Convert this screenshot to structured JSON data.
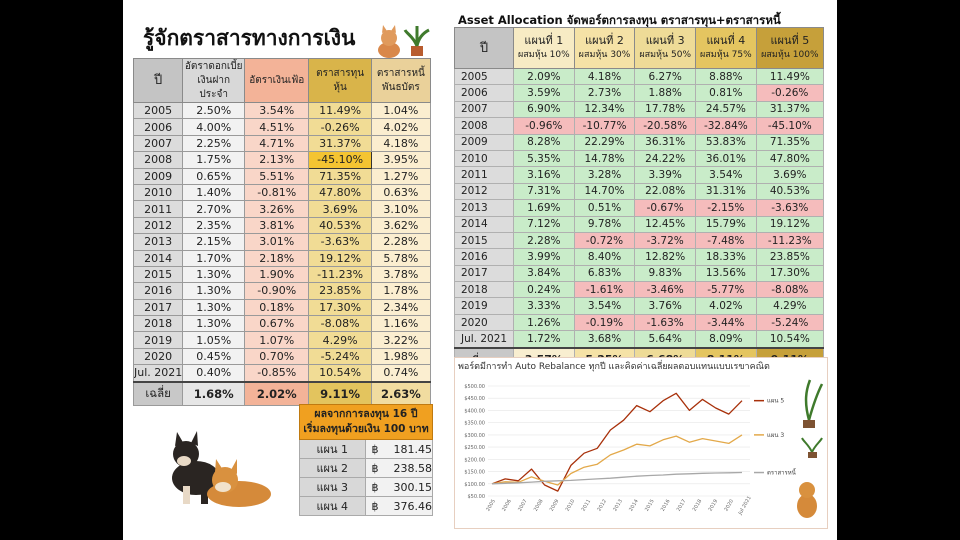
{
  "title": "รู้จักตราสารทางการเงิน",
  "left_table": {
    "headers": [
      "ปี",
      "อัตราดอกเบี้ย\nเงินฝากประจำ",
      "อัตราเงินเฟ้อ",
      "ตราสารทุน\nหุ้น",
      "ตราสารหนี้\nพันธบัตร"
    ],
    "rows": [
      [
        "2005",
        "2.50%",
        "3.54%",
        "11.49%",
        "1.04%"
      ],
      [
        "2006",
        "4.00%",
        "4.51%",
        "-0.26%",
        "4.02%"
      ],
      [
        "2007",
        "2.25%",
        "4.71%",
        "31.37%",
        "4.18%"
      ],
      [
        "2008",
        "1.75%",
        "2.13%",
        "-45.10%",
        "3.95%"
      ],
      [
        "2009",
        "0.65%",
        "5.51%",
        "71.35%",
        "1.27%"
      ],
      [
        "2010",
        "1.40%",
        "-0.81%",
        "47.80%",
        "0.63%"
      ],
      [
        "2011",
        "2.70%",
        "3.26%",
        "3.69%",
        "3.10%"
      ],
      [
        "2012",
        "2.35%",
        "3.81%",
        "40.53%",
        "3.62%"
      ],
      [
        "2013",
        "2.15%",
        "3.01%",
        "-3.63%",
        "2.28%"
      ],
      [
        "2014",
        "1.70%",
        "2.18%",
        "19.12%",
        "5.78%"
      ],
      [
        "2015",
        "1.30%",
        "1.90%",
        "-11.23%",
        "3.78%"
      ],
      [
        "2016",
        "1.30%",
        "-0.90%",
        "23.85%",
        "1.78%"
      ],
      [
        "2017",
        "1.30%",
        "0.18%",
        "17.30%",
        "2.34%"
      ],
      [
        "2018",
        "1.30%",
        "0.67%",
        "-8.08%",
        "1.16%"
      ],
      [
        "2019",
        "1.05%",
        "1.07%",
        "4.29%",
        "3.22%"
      ],
      [
        "2020",
        "0.45%",
        "0.70%",
        "-5.24%",
        "1.98%"
      ],
      [
        "Jul. 2021",
        "0.40%",
        "-0.85%",
        "10.54%",
        "0.74%"
      ]
    ],
    "average": [
      "เฉลี่ย",
      "1.68%",
      "2.02%",
      "9.11%",
      "2.63%"
    ]
  },
  "right_title": "Asset Allocation จัดพอร์ตการลงทุน ตราสารทุน+ตราสารหนี้",
  "right_table": {
    "year_header": "ปี",
    "plans": [
      {
        "name": "แผนที่ 1",
        "mix": "ผสมหุ้น 10%"
      },
      {
        "name": "แผนที่ 2",
        "mix": "ผสมหุ้น 30%"
      },
      {
        "name": "แผนที่ 3",
        "mix": "ผสมหุ้น 50%"
      },
      {
        "name": "แผนที่ 4",
        "mix": "ผสมหุ้น 75%"
      },
      {
        "name": "แผนที่ 5",
        "mix": "ผสมหุ้น 100%"
      }
    ],
    "rows": [
      [
        "2005",
        "2.09%",
        "4.18%",
        "6.27%",
        "8.88%",
        "11.49%"
      ],
      [
        "2006",
        "3.59%",
        "2.73%",
        "1.88%",
        "0.81%",
        "-0.26%"
      ],
      [
        "2007",
        "6.90%",
        "12.34%",
        "17.78%",
        "24.57%",
        "31.37%"
      ],
      [
        "2008",
        "-0.96%",
        "-10.77%",
        "-20.58%",
        "-32.84%",
        "-45.10%"
      ],
      [
        "2009",
        "8.28%",
        "22.29%",
        "36.31%",
        "53.83%",
        "71.35%"
      ],
      [
        "2010",
        "5.35%",
        "14.78%",
        "24.22%",
        "36.01%",
        "47.80%"
      ],
      [
        "2011",
        "3.16%",
        "3.28%",
        "3.39%",
        "3.54%",
        "3.69%"
      ],
      [
        "2012",
        "7.31%",
        "14.70%",
        "22.08%",
        "31.31%",
        "40.53%"
      ],
      [
        "2013",
        "1.69%",
        "0.51%",
        "-0.67%",
        "-2.15%",
        "-3.63%"
      ],
      [
        "2014",
        "7.12%",
        "9.78%",
        "12.45%",
        "15.79%",
        "19.12%"
      ],
      [
        "2015",
        "2.28%",
        "-0.72%",
        "-3.72%",
        "-7.48%",
        "-11.23%"
      ],
      [
        "2016",
        "3.99%",
        "8.40%",
        "12.82%",
        "18.33%",
        "23.85%"
      ],
      [
        "2017",
        "3.84%",
        "6.83%",
        "9.83%",
        "13.56%",
        "17.30%"
      ],
      [
        "2018",
        "0.24%",
        "-1.61%",
        "-3.46%",
        "-5.77%",
        "-8.08%"
      ],
      [
        "2019",
        "3.33%",
        "3.54%",
        "3.76%",
        "4.02%",
        "4.29%"
      ],
      [
        "2020",
        "1.26%",
        "-0.19%",
        "-1.63%",
        "-3.44%",
        "-5.24%"
      ],
      [
        "Jul. 2021",
        "1.72%",
        "3.68%",
        "5.64%",
        "8.09%",
        "10.54%"
      ]
    ],
    "average": [
      "เฉลี่ย",
      "3.57%",
      "5.25%",
      "6.68%",
      "8.11%",
      "9.11%"
    ]
  },
  "result_box": {
    "title_line1": "ผลจากการลงทุน 16 ปี",
    "title_line2": "เริ่มลงทุนด้วยเงิน 100 บาท",
    "currency": "฿",
    "rows": [
      {
        "plan": "แผน 1",
        "value": "181.45"
      },
      {
        "plan": "แผน 2",
        "value": "238.58"
      },
      {
        "plan": "แผน 3",
        "value": "300.15"
      },
      {
        "plan": "แผน 4",
        "value": "376.46"
      }
    ]
  },
  "chart_caption": "พอร์ตมีการทำ Auto Rebalance ทุกปี และคิดค่าเฉลี่ยผลตอบแทนแบบเรขาคณิต",
  "chart_data": {
    "type": "line",
    "y_ticks": [
      "$50.00",
      "$100.00",
      "$150.00",
      "$200.00",
      "$250.00",
      "$300.00",
      "$350.00",
      "$400.00",
      "$450.00",
      "$500.00"
    ],
    "ylim": [
      50,
      500
    ],
    "x_ticks": [
      "2005",
      "2006",
      "2007",
      "2008",
      "2009",
      "2010",
      "2011",
      "2012",
      "2013",
      "2014",
      "2015",
      "2016",
      "2017",
      "2018",
      "2019",
      "2020",
      "Jul 2021"
    ],
    "series": [
      {
        "name": "แผน 5",
        "color": "#a8300a",
        "values": [
          100,
          120,
          112,
          160,
          95,
          70,
          175,
          225,
          245,
          320,
          360,
          420,
          395,
          440,
          470,
          400,
          445,
          410,
          385,
          440
        ]
      },
      {
        "name": "แผน 3",
        "color": "#e3a94a",
        "values": [
          100,
          108,
          106,
          128,
          110,
          95,
          142,
          168,
          180,
          218,
          238,
          262,
          255,
          280,
          295,
          270,
          285,
          275,
          265,
          300
        ]
      },
      {
        "name": "ตราสารหนี้",
        "color": "#a8a8a8",
        "values": [
          100,
          102,
          104,
          107,
          110,
          112,
          114,
          117,
          120,
          123,
          127,
          131,
          134,
          136,
          139,
          141,
          143,
          144,
          145,
          146
        ]
      }
    ]
  }
}
